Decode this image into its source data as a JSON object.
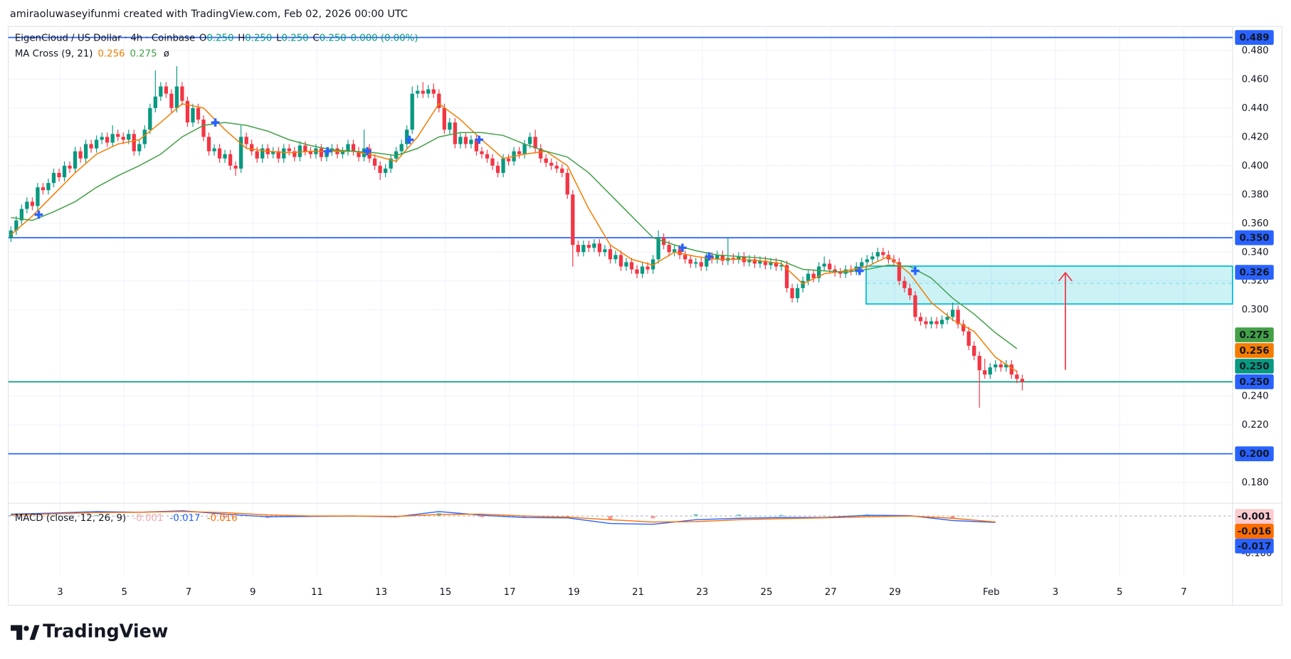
{
  "header": {
    "credit": "amiraoluwaseyifunmi created with TradingView.com, Feb 02, 2026 00:00 UTC"
  },
  "footer": {
    "brand": "TradingView"
  },
  "chart_data": {
    "type": "candlestick",
    "legend": {
      "symbol": "EigenCloud / US Dollar · 4h · Coinbase",
      "ohlc": [
        {
          "key": "O",
          "value": "0.250"
        },
        {
          "key": "H",
          "value": "0.250"
        },
        {
          "key": "L",
          "value": "0.250"
        },
        {
          "key": "C",
          "value": "0.250"
        }
      ],
      "change": "0.000 (0.00%)",
      "indicator": "MA Cross (9, 21)",
      "indicator_values": [
        "0.256",
        "0.275"
      ],
      "icon": "ø",
      "macd_label": "MACD (close, 12, 26, 9)",
      "macd_values": [
        "-0.001",
        "-0.017",
        "-0.016"
      ]
    },
    "up_color": "#089981",
    "down_color": "#f23645",
    "xlim": [
      -0.5,
      228.3
    ],
    "xticks": [
      {
        "value": 9.2,
        "label": "3"
      },
      {
        "value": 21.2,
        "label": "5"
      },
      {
        "value": 33.2,
        "label": "7"
      },
      {
        "value": 45.2,
        "label": "9"
      },
      {
        "value": 57.2,
        "label": "11"
      },
      {
        "value": 69.2,
        "label": "13"
      },
      {
        "value": 81.2,
        "label": "15"
      },
      {
        "value": 93.2,
        "label": "17"
      },
      {
        "value": 105.2,
        "label": "19"
      },
      {
        "value": 117.2,
        "label": "21"
      },
      {
        "value": 129.2,
        "label": "23"
      },
      {
        "value": 141.2,
        "label": "25"
      },
      {
        "value": 153.2,
        "label": "27"
      },
      {
        "value": 165.2,
        "label": "29"
      },
      {
        "value": 183.2,
        "label": "Feb"
      },
      {
        "value": 195.2,
        "label": "3"
      },
      {
        "value": 207.2,
        "label": "5"
      },
      {
        "value": 219.2,
        "label": "7"
      }
    ],
    "ylim": [
      0.1657,
      0.4966
    ],
    "yticks": [
      {
        "value": 0.48,
        "label": "0.480"
      },
      {
        "value": 0.46,
        "label": "0.460"
      },
      {
        "value": 0.44,
        "label": "0.440"
      },
      {
        "value": 0.42,
        "label": "0.420"
      },
      {
        "value": 0.4,
        "label": "0.400"
      },
      {
        "value": 0.38,
        "label": "0.380"
      },
      {
        "value": 0.36,
        "label": "0.360"
      },
      {
        "value": 0.34,
        "label": "0.340"
      },
      {
        "value": 0.32,
        "label": "0.320"
      },
      {
        "value": 0.3,
        "label": "0.300"
      },
      {
        "value": 0.24,
        "label": "0.240"
      },
      {
        "value": 0.22,
        "label": "0.220"
      },
      {
        "value": 0.18,
        "label": "0.180"
      }
    ],
    "grid": true,
    "open": [
      0.35,
      0.355,
      0.362,
      0.37,
      0.375,
      0.372,
      0.385,
      0.383,
      0.388,
      0.395,
      0.392,
      0.4,
      0.398,
      0.41,
      0.405,
      0.415,
      0.412,
      0.418,
      0.42,
      0.416,
      0.422,
      0.42,
      0.418,
      0.422,
      0.41,
      0.415,
      0.425,
      0.44,
      0.448,
      0.455,
      0.45,
      0.44,
      0.455,
      0.445,
      0.43,
      0.44,
      0.432,
      0.42,
      0.41,
      0.412,
      0.405,
      0.408,
      0.4,
      0.398,
      0.42,
      0.415,
      0.41,
      0.405,
      0.412,
      0.408,
      0.41,
      0.405,
      0.412,
      0.41,
      0.406,
      0.414,
      0.41,
      0.408,
      0.412,
      0.406,
      0.41,
      0.412,
      0.408,
      0.41,
      0.415,
      0.41,
      0.406,
      0.412,
      0.405,
      0.4,
      0.395,
      0.398,
      0.405,
      0.41,
      0.415,
      0.425,
      0.45,
      0.452,
      0.45,
      0.453,
      0.45,
      0.44,
      0.425,
      0.43,
      0.415,
      0.42,
      0.415,
      0.418,
      0.41,
      0.408,
      0.405,
      0.4,
      0.395,
      0.405,
      0.403,
      0.41,
      0.408,
      0.415,
      0.42,
      0.412,
      0.405,
      0.402,
      0.4,
      0.398,
      0.395,
      0.38,
      0.345,
      0.34,
      0.345,
      0.343,
      0.346,
      0.34,
      0.342,
      0.335,
      0.338,
      0.33,
      0.333,
      0.328,
      0.325,
      0.33,
      0.328,
      0.335,
      0.35,
      0.345,
      0.34,
      0.342,
      0.338,
      0.335,
      0.332,
      0.333,
      0.33,
      0.337,
      0.335,
      0.338,
      0.334,
      0.336,
      0.335,
      0.337,
      0.333,
      0.335,
      0.332,
      0.334,
      0.331,
      0.333,
      0.33,
      0.331,
      0.315,
      0.308,
      0.315,
      0.32,
      0.325,
      0.322,
      0.33,
      0.332,
      0.328,
      0.326,
      0.325,
      0.328,
      0.327,
      0.33,
      0.333,
      0.335,
      0.337,
      0.34,
      0.338,
      0.335,
      0.333,
      0.32,
      0.315,
      0.31,
      0.295,
      0.292,
      0.29,
      0.292,
      0.29,
      0.293,
      0.295,
      0.3,
      0.29,
      0.285,
      0.275,
      0.268,
      0.258,
      0.255,
      0.26,
      0.262,
      0.26,
      0.262,
      0.255,
      0.252
    ],
    "high": [
      0.358,
      0.365,
      0.373,
      0.378,
      0.378,
      0.388,
      0.388,
      0.391,
      0.398,
      0.398,
      0.403,
      0.403,
      0.413,
      0.413,
      0.418,
      0.418,
      0.421,
      0.423,
      0.423,
      0.428,
      0.425,
      0.423,
      0.425,
      0.425,
      0.418,
      0.428,
      0.443,
      0.466,
      0.458,
      0.458,
      0.453,
      0.469,
      0.458,
      0.448,
      0.443,
      0.443,
      0.435,
      0.423,
      0.415,
      0.415,
      0.411,
      0.411,
      0.403,
      0.428,
      0.423,
      0.418,
      0.413,
      0.415,
      0.415,
      0.413,
      0.413,
      0.415,
      0.415,
      0.413,
      0.417,
      0.417,
      0.413,
      0.415,
      0.415,
      0.413,
      0.415,
      0.415,
      0.413,
      0.418,
      0.418,
      0.413,
      0.425,
      0.415,
      0.408,
      0.403,
      0.401,
      0.408,
      0.413,
      0.418,
      0.428,
      0.455,
      0.456,
      0.458,
      0.456,
      0.457,
      0.453,
      0.443,
      0.433,
      0.433,
      0.423,
      0.423,
      0.421,
      0.421,
      0.413,
      0.411,
      0.408,
      0.403,
      0.408,
      0.408,
      0.413,
      0.413,
      0.418,
      0.423,
      0.425,
      0.415,
      0.408,
      0.405,
      0.403,
      0.401,
      0.398,
      0.383,
      0.348,
      0.348,
      0.348,
      0.349,
      0.349,
      0.345,
      0.345,
      0.341,
      0.341,
      0.336,
      0.336,
      0.331,
      0.333,
      0.333,
      0.338,
      0.355,
      0.353,
      0.348,
      0.345,
      0.345,
      0.341,
      0.338,
      0.336,
      0.336,
      0.34,
      0.34,
      0.341,
      0.341,
      0.35,
      0.339,
      0.34,
      0.34,
      0.338,
      0.338,
      0.337,
      0.337,
      0.336,
      0.336,
      0.334,
      0.334,
      0.318,
      0.318,
      0.323,
      0.328,
      0.328,
      0.333,
      0.337,
      0.335,
      0.331,
      0.329,
      0.331,
      0.331,
      0.333,
      0.336,
      0.338,
      0.34,
      0.343,
      0.343,
      0.341,
      0.338,
      0.336,
      0.323,
      0.318,
      0.313,
      0.298,
      0.295,
      0.295,
      0.295,
      0.296,
      0.298,
      0.305,
      0.303,
      0.293,
      0.288,
      0.278,
      0.271,
      0.266,
      0.263,
      0.265,
      0.265,
      0.265,
      0.265,
      0.258,
      0.255
    ],
    "low": [
      0.347,
      0.352,
      0.359,
      0.367,
      0.369,
      0.369,
      0.38,
      0.38,
      0.385,
      0.389,
      0.389,
      0.395,
      0.395,
      0.402,
      0.402,
      0.409,
      0.409,
      0.415,
      0.413,
      0.413,
      0.417,
      0.415,
      0.415,
      0.407,
      0.407,
      0.412,
      0.422,
      0.437,
      0.445,
      0.447,
      0.437,
      0.437,
      0.442,
      0.427,
      0.427,
      0.429,
      0.417,
      0.407,
      0.407,
      0.402,
      0.402,
      0.397,
      0.393,
      0.395,
      0.412,
      0.407,
      0.402,
      0.402,
      0.405,
      0.405,
      0.402,
      0.402,
      0.407,
      0.403,
      0.403,
      0.407,
      0.405,
      0.405,
      0.403,
      0.403,
      0.407,
      0.405,
      0.405,
      0.407,
      0.407,
      0.403,
      0.403,
      0.402,
      0.397,
      0.39,
      0.392,
      0.395,
      0.402,
      0.407,
      0.412,
      0.422,
      0.447,
      0.447,
      0.447,
      0.447,
      0.437,
      0.422,
      0.422,
      0.412,
      0.412,
      0.412,
      0.412,
      0.407,
      0.405,
      0.402,
      0.397,
      0.392,
      0.392,
      0.4,
      0.4,
      0.405,
      0.405,
      0.412,
      0.409,
      0.402,
      0.399,
      0.397,
      0.395,
      0.392,
      0.377,
      0.33,
      0.337,
      0.337,
      0.34,
      0.34,
      0.337,
      0.337,
      0.332,
      0.332,
      0.327,
      0.327,
      0.325,
      0.322,
      0.322,
      0.325,
      0.325,
      0.332,
      0.342,
      0.337,
      0.337,
      0.335,
      0.332,
      0.329,
      0.329,
      0.327,
      0.327,
      0.332,
      0.332,
      0.331,
      0.331,
      0.332,
      0.332,
      0.33,
      0.33,
      0.329,
      0.329,
      0.328,
      0.328,
      0.327,
      0.327,
      0.312,
      0.305,
      0.305,
      0.312,
      0.317,
      0.319,
      0.319,
      0.327,
      0.325,
      0.323,
      0.322,
      0.322,
      0.324,
      0.324,
      0.327,
      0.33,
      0.332,
      0.334,
      0.335,
      0.332,
      0.33,
      0.317,
      0.312,
      0.307,
      0.292,
      0.289,
      0.287,
      0.287,
      0.287,
      0.287,
      0.29,
      0.292,
      0.287,
      0.282,
      0.272,
      0.265,
      0.232,
      0.252,
      0.252,
      0.257,
      0.257,
      0.257,
      0.252,
      0.249,
      0.244
    ],
    "close": [
      0.355,
      0.362,
      0.37,
      0.375,
      0.372,
      0.385,
      0.383,
      0.388,
      0.395,
      0.392,
      0.4,
      0.398,
      0.41,
      0.405,
      0.415,
      0.412,
      0.418,
      0.42,
      0.416,
      0.422,
      0.42,
      0.418,
      0.422,
      0.41,
      0.415,
      0.425,
      0.44,
      0.448,
      0.455,
      0.45,
      0.44,
      0.455,
      0.445,
      0.43,
      0.44,
      0.432,
      0.42,
      0.41,
      0.412,
      0.405,
      0.408,
      0.4,
      0.398,
      0.42,
      0.415,
      0.41,
      0.405,
      0.412,
      0.408,
      0.41,
      0.405,
      0.412,
      0.41,
      0.406,
      0.414,
      0.41,
      0.408,
      0.412,
      0.406,
      0.41,
      0.412,
      0.408,
      0.41,
      0.415,
      0.41,
      0.406,
      0.412,
      0.405,
      0.4,
      0.395,
      0.398,
      0.405,
      0.41,
      0.415,
      0.425,
      0.45,
      0.452,
      0.45,
      0.453,
      0.45,
      0.44,
      0.425,
      0.43,
      0.415,
      0.42,
      0.415,
      0.418,
      0.41,
      0.408,
      0.405,
      0.4,
      0.395,
      0.405,
      0.403,
      0.41,
      0.408,
      0.415,
      0.42,
      0.412,
      0.405,
      0.402,
      0.4,
      0.398,
      0.395,
      0.38,
      0.345,
      0.34,
      0.345,
      0.343,
      0.346,
      0.34,
      0.342,
      0.335,
      0.338,
      0.33,
      0.333,
      0.328,
      0.325,
      0.33,
      0.328,
      0.335,
      0.35,
      0.345,
      0.34,
      0.342,
      0.338,
      0.335,
      0.332,
      0.333,
      0.33,
      0.337,
      0.335,
      0.338,
      0.334,
      0.336,
      0.335,
      0.337,
      0.333,
      0.335,
      0.332,
      0.334,
      0.331,
      0.333,
      0.33,
      0.331,
      0.315,
      0.308,
      0.315,
      0.32,
      0.325,
      0.322,
      0.33,
      0.332,
      0.328,
      0.326,
      0.325,
      0.328,
      0.327,
      0.33,
      0.333,
      0.335,
      0.337,
      0.34,
      0.338,
      0.335,
      0.333,
      0.32,
      0.315,
      0.31,
      0.295,
      0.292,
      0.29,
      0.292,
      0.29,
      0.293,
      0.295,
      0.3,
      0.29,
      0.285,
      0.275,
      0.268,
      0.258,
      0.255,
      0.26,
      0.262,
      0.26,
      0.262,
      0.255,
      0.252,
      0.25
    ],
    "ma_lines": [
      {
        "color": "#f57c00",
        "x": [
          0,
          4,
          8,
          12,
          16,
          20,
          24,
          28,
          32,
          36,
          40,
          44,
          48,
          52,
          56,
          60,
          64,
          68,
          72,
          76,
          80,
          84,
          88,
          92,
          96,
          100,
          104,
          108,
          112,
          116,
          120,
          124,
          128,
          132,
          136,
          140,
          144,
          148,
          152,
          156,
          160,
          164,
          168,
          172,
          176,
          180,
          184,
          188
        ],
        "values": [
          0.352,
          0.365,
          0.38,
          0.395,
          0.408,
          0.415,
          0.418,
          0.43,
          0.443,
          0.44,
          0.425,
          0.412,
          0.41,
          0.409,
          0.41,
          0.41,
          0.41,
          0.407,
          0.403,
          0.42,
          0.443,
          0.432,
          0.418,
          0.405,
          0.408,
          0.41,
          0.4,
          0.37,
          0.345,
          0.335,
          0.331,
          0.34,
          0.337,
          0.335,
          0.335,
          0.334,
          0.332,
          0.318,
          0.325,
          0.327,
          0.33,
          0.337,
          0.325,
          0.305,
          0.293,
          0.285,
          0.267,
          0.257
        ]
      },
      {
        "color": "#43a047",
        "x": [
          0,
          4,
          8,
          12,
          16,
          20,
          24,
          28,
          32,
          36,
          40,
          44,
          48,
          52,
          56,
          60,
          64,
          68,
          72,
          76,
          80,
          84,
          88,
          92,
          96,
          100,
          104,
          108,
          112,
          116,
          120,
          124,
          128,
          132,
          136,
          140,
          144,
          148,
          152,
          156,
          160,
          164,
          168,
          172,
          176,
          180,
          184,
          188
        ],
        "values": [
          0.364,
          0.362,
          0.368,
          0.375,
          0.385,
          0.393,
          0.4,
          0.408,
          0.42,
          0.428,
          0.43,
          0.428,
          0.424,
          0.418,
          0.414,
          0.411,
          0.41,
          0.409,
          0.407,
          0.412,
          0.42,
          0.423,
          0.423,
          0.421,
          0.415,
          0.41,
          0.406,
          0.395,
          0.38,
          0.365,
          0.35,
          0.345,
          0.341,
          0.338,
          0.337,
          0.336,
          0.334,
          0.328,
          0.327,
          0.326,
          0.328,
          0.331,
          0.33,
          0.322,
          0.308,
          0.297,
          0.284,
          0.273
        ]
      }
    ],
    "cross_markers": {
      "color": "#2962ff",
      "x": [
        5.2,
        38.2,
        59.2,
        66.6,
        74.5,
        87.5,
        125.5,
        130.5,
        158.6,
        169
      ],
      "values": [
        0.366,
        0.43,
        0.41,
        0.41,
        0.418,
        0.418,
        0.343,
        0.337,
        0.327,
        0.327
      ]
    },
    "price_tags": [
      {
        "value": 0.489,
        "color": "#2962ff",
        "line": true
      },
      {
        "value": 0.35,
        "label": "0.350",
        "color": "#2962ff",
        "line": true
      },
      {
        "value": 0.326,
        "color": "#2962ff"
      },
      {
        "value": 0.275,
        "color": "#43a047"
      },
      {
        "value": 0.256,
        "color": "#f57c00"
      },
      {
        "value": 0.25,
        "label": "0.250",
        "color": "#2962ff"
      },
      {
        "value": 0.25,
        "label": "0.250",
        "color": "#089981",
        "line": true
      },
      {
        "value": 0.2,
        "label": "0.200",
        "color": "#2962ff",
        "line": true
      }
    ],
    "macd": {
      "ylim": [
        -0.1615,
        0.032
      ],
      "yticks": [
        {
          "value": -0.1,
          "label": "-0.100"
        }
      ],
      "x": [
        0,
        8,
        16,
        24,
        32,
        40,
        48,
        56,
        64,
        72,
        80,
        88,
        96,
        104,
        112,
        120,
        128,
        136,
        144,
        152,
        160,
        168,
        176,
        184
      ],
      "macd": [
        0.005,
        0.008,
        0.012,
        0.01,
        0.014,
        0.005,
        -0.002,
        -0.001,
        0.0,
        -0.002,
        0.012,
        0.002,
        -0.004,
        -0.005,
        -0.02,
        -0.022,
        -0.01,
        -0.006,
        -0.004,
        -0.004,
        0.002,
        0.001,
        -0.012,
        -0.017
      ],
      "signal": [
        0.003,
        0.006,
        0.009,
        0.01,
        0.012,
        0.009,
        0.003,
        0.0,
        0.0,
        -0.001,
        0.004,
        0.005,
        0.0,
        -0.003,
        -0.01,
        -0.016,
        -0.015,
        -0.01,
        -0.007,
        -0.005,
        -0.002,
        0.0,
        -0.006,
        -0.016
      ],
      "histogram": [
        0.002,
        0.002,
        0.003,
        0.0,
        0.002,
        -0.004,
        -0.005,
        -0.001,
        0.0,
        -0.001,
        0.008,
        -0.003,
        -0.004,
        -0.002,
        -0.01,
        -0.006,
        0.005,
        0.004,
        0.003,
        0.001,
        0.004,
        0.001,
        -0.006,
        -0.001
      ],
      "macd_color": "#2962ff",
      "signal_color": "#ff6d00",
      "up_color": "#26a69a",
      "down_color": "#ef5350",
      "tags": [
        {
          "value": -0.001,
          "color": "#fccbcd",
          "text_color": "#131722"
        },
        {
          "value": -0.016,
          "color": "#ff6d00",
          "text_color": "#ffffff"
        },
        {
          "value": -0.017,
          "color": "#2962ff",
          "text_color": "#ffffff"
        }
      ]
    }
  }
}
